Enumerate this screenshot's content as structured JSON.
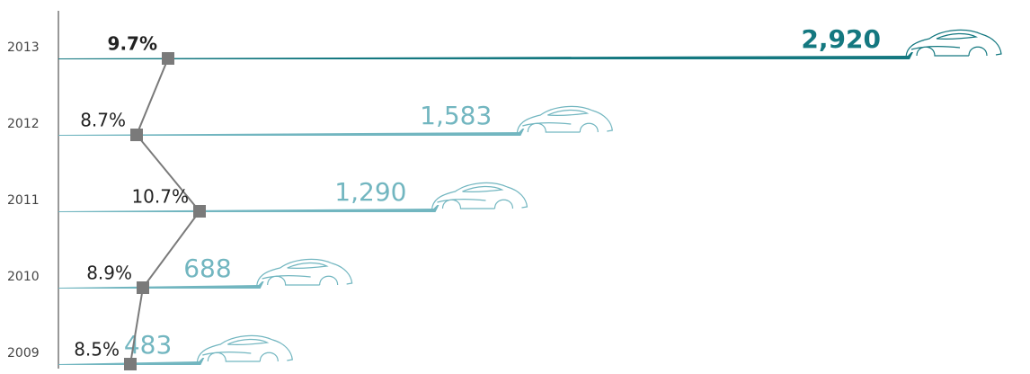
{
  "chart_data": {
    "type": "bar-line",
    "categories": [
      "2009",
      "2010",
      "2011",
      "2012",
      "2013"
    ],
    "highlight_index": 4,
    "series": [
      {
        "values": [
          483,
          688,
          1290,
          1583,
          2920
        ],
        "value_labels": [
          "483",
          "688",
          "1,290",
          "1,583",
          "2,920"
        ],
        "colors": [
          "#72b6c0",
          "#72b6c0",
          "#72b6c0",
          "#72b6c0",
          "#147880"
        ]
      },
      {
        "values": [
          8.5,
          8.9,
          10.7,
          8.7,
          9.7
        ],
        "value_labels": [
          "8.5%",
          "8.9%",
          "10.7%",
          "8.7%",
          "9.7%"
        ],
        "color": "#7a7a7a"
      }
    ]
  }
}
